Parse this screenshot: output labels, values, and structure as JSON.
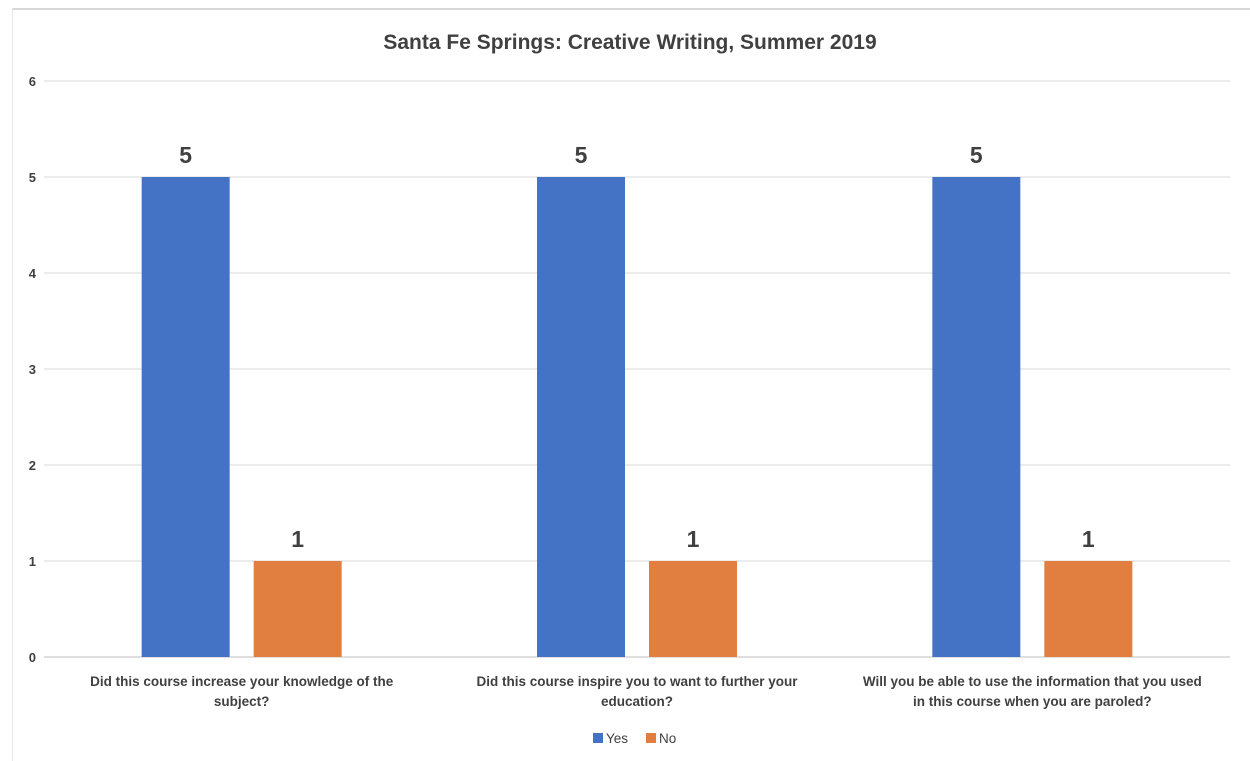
{
  "chart_data": {
    "type": "bar",
    "title": "Santa Fe Springs: Creative Writing, Summer 2019",
    "categories": [
      [
        "Did this course increase your knowledge of the",
        "subject?"
      ],
      [
        "Did this course inspire you to want to further your",
        "education?"
      ],
      [
        "Will you be able to use the information that you used",
        "in this course when you are paroled?"
      ]
    ],
    "series": [
      {
        "name": "Yes",
        "color": "#4472C4",
        "values": [
          5,
          5,
          5
        ]
      },
      {
        "name": "No",
        "color": "#E07F40",
        "values": [
          1,
          1,
          1
        ]
      }
    ],
    "ylim": [
      0,
      6
    ],
    "yticks": [
      0,
      1,
      2,
      3,
      4,
      5,
      6
    ],
    "grid": true,
    "data_labels": true,
    "legend": "bottom"
  }
}
